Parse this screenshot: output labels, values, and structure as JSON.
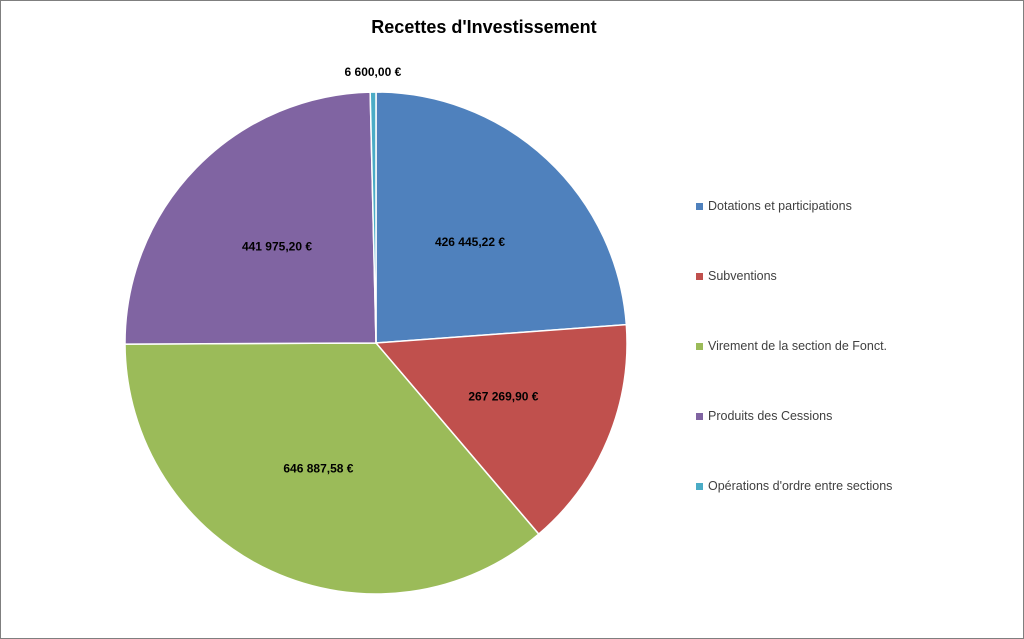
{
  "chart_data": {
    "type": "pie",
    "title": "Recettes d'Investissement",
    "start_angle_deg": -90,
    "direction": "clockwise",
    "legend_position": "right",
    "slices": [
      {
        "name": "Dotations et participations",
        "value": 426445.22,
        "label": "426 445,22 €",
        "color": "#4f81bd"
      },
      {
        "name": "Subventions",
        "value": 267269.9,
        "label": "267 269,90 €",
        "color": "#c0504d"
      },
      {
        "name": "Virement de la section de Fonct.",
        "value": 646887.58,
        "label": "646 887,58 €",
        "color": "#9bbb59"
      },
      {
        "name": "Produits des Cessions",
        "value": 441975.2,
        "label": "441 975,20 €",
        "color": "#8064a2"
      },
      {
        "name": "Opérations d'ordre entre sections",
        "value": 6600.0,
        "label": "6 600,00 €",
        "color": "#4bacc6"
      }
    ]
  }
}
